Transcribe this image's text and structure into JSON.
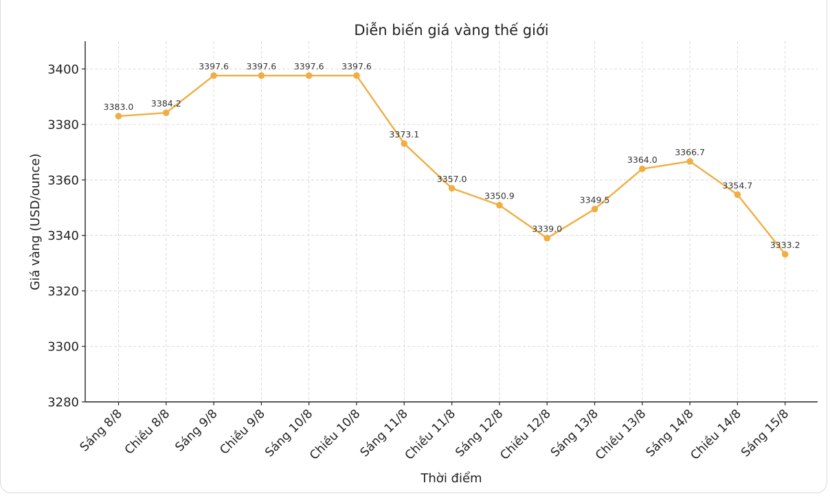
{
  "chart_data": {
    "type": "line",
    "title": "Diễn biến giá vàng thế giới",
    "xlabel": "Thời điểm",
    "ylabel": "Giá vàng (USD/ounce)",
    "categories": [
      "Sáng 8/8",
      "Chiều 8/8",
      "Sáng 9/8",
      "Chiều 9/8",
      "Sáng 10/8",
      "Chiều 10/8",
      "Sáng 11/8",
      "Chiều 11/8",
      "Sáng 12/8",
      "Chiều 12/8",
      "Sáng 13/8",
      "Chiều 13/8",
      "Sáng 14/8",
      "Chiều 14/8",
      "Sáng 15/8"
    ],
    "values": [
      3383.0,
      3384.2,
      3397.6,
      3397.6,
      3397.6,
      3397.6,
      3373.1,
      3357.0,
      3350.9,
      3339.0,
      3349.5,
      3364.0,
      3366.7,
      3354.7,
      3333.2
    ],
    "data_labels": [
      "3383.0",
      "3384.2",
      "3397.6",
      "3397.6",
      "3397.6",
      "3397.6",
      "3373.1",
      "3357.0",
      "3350.9",
      "3339.0",
      "3349.5",
      "3364.0",
      "3366.7",
      "3354.7",
      "3333.2"
    ],
    "yticks": [
      "3280",
      "3300",
      "3320",
      "3340",
      "3360",
      "3380",
      "3400"
    ],
    "ylim": [
      3280,
      3410
    ],
    "grid": true,
    "line_color": "#f0ad40"
  }
}
